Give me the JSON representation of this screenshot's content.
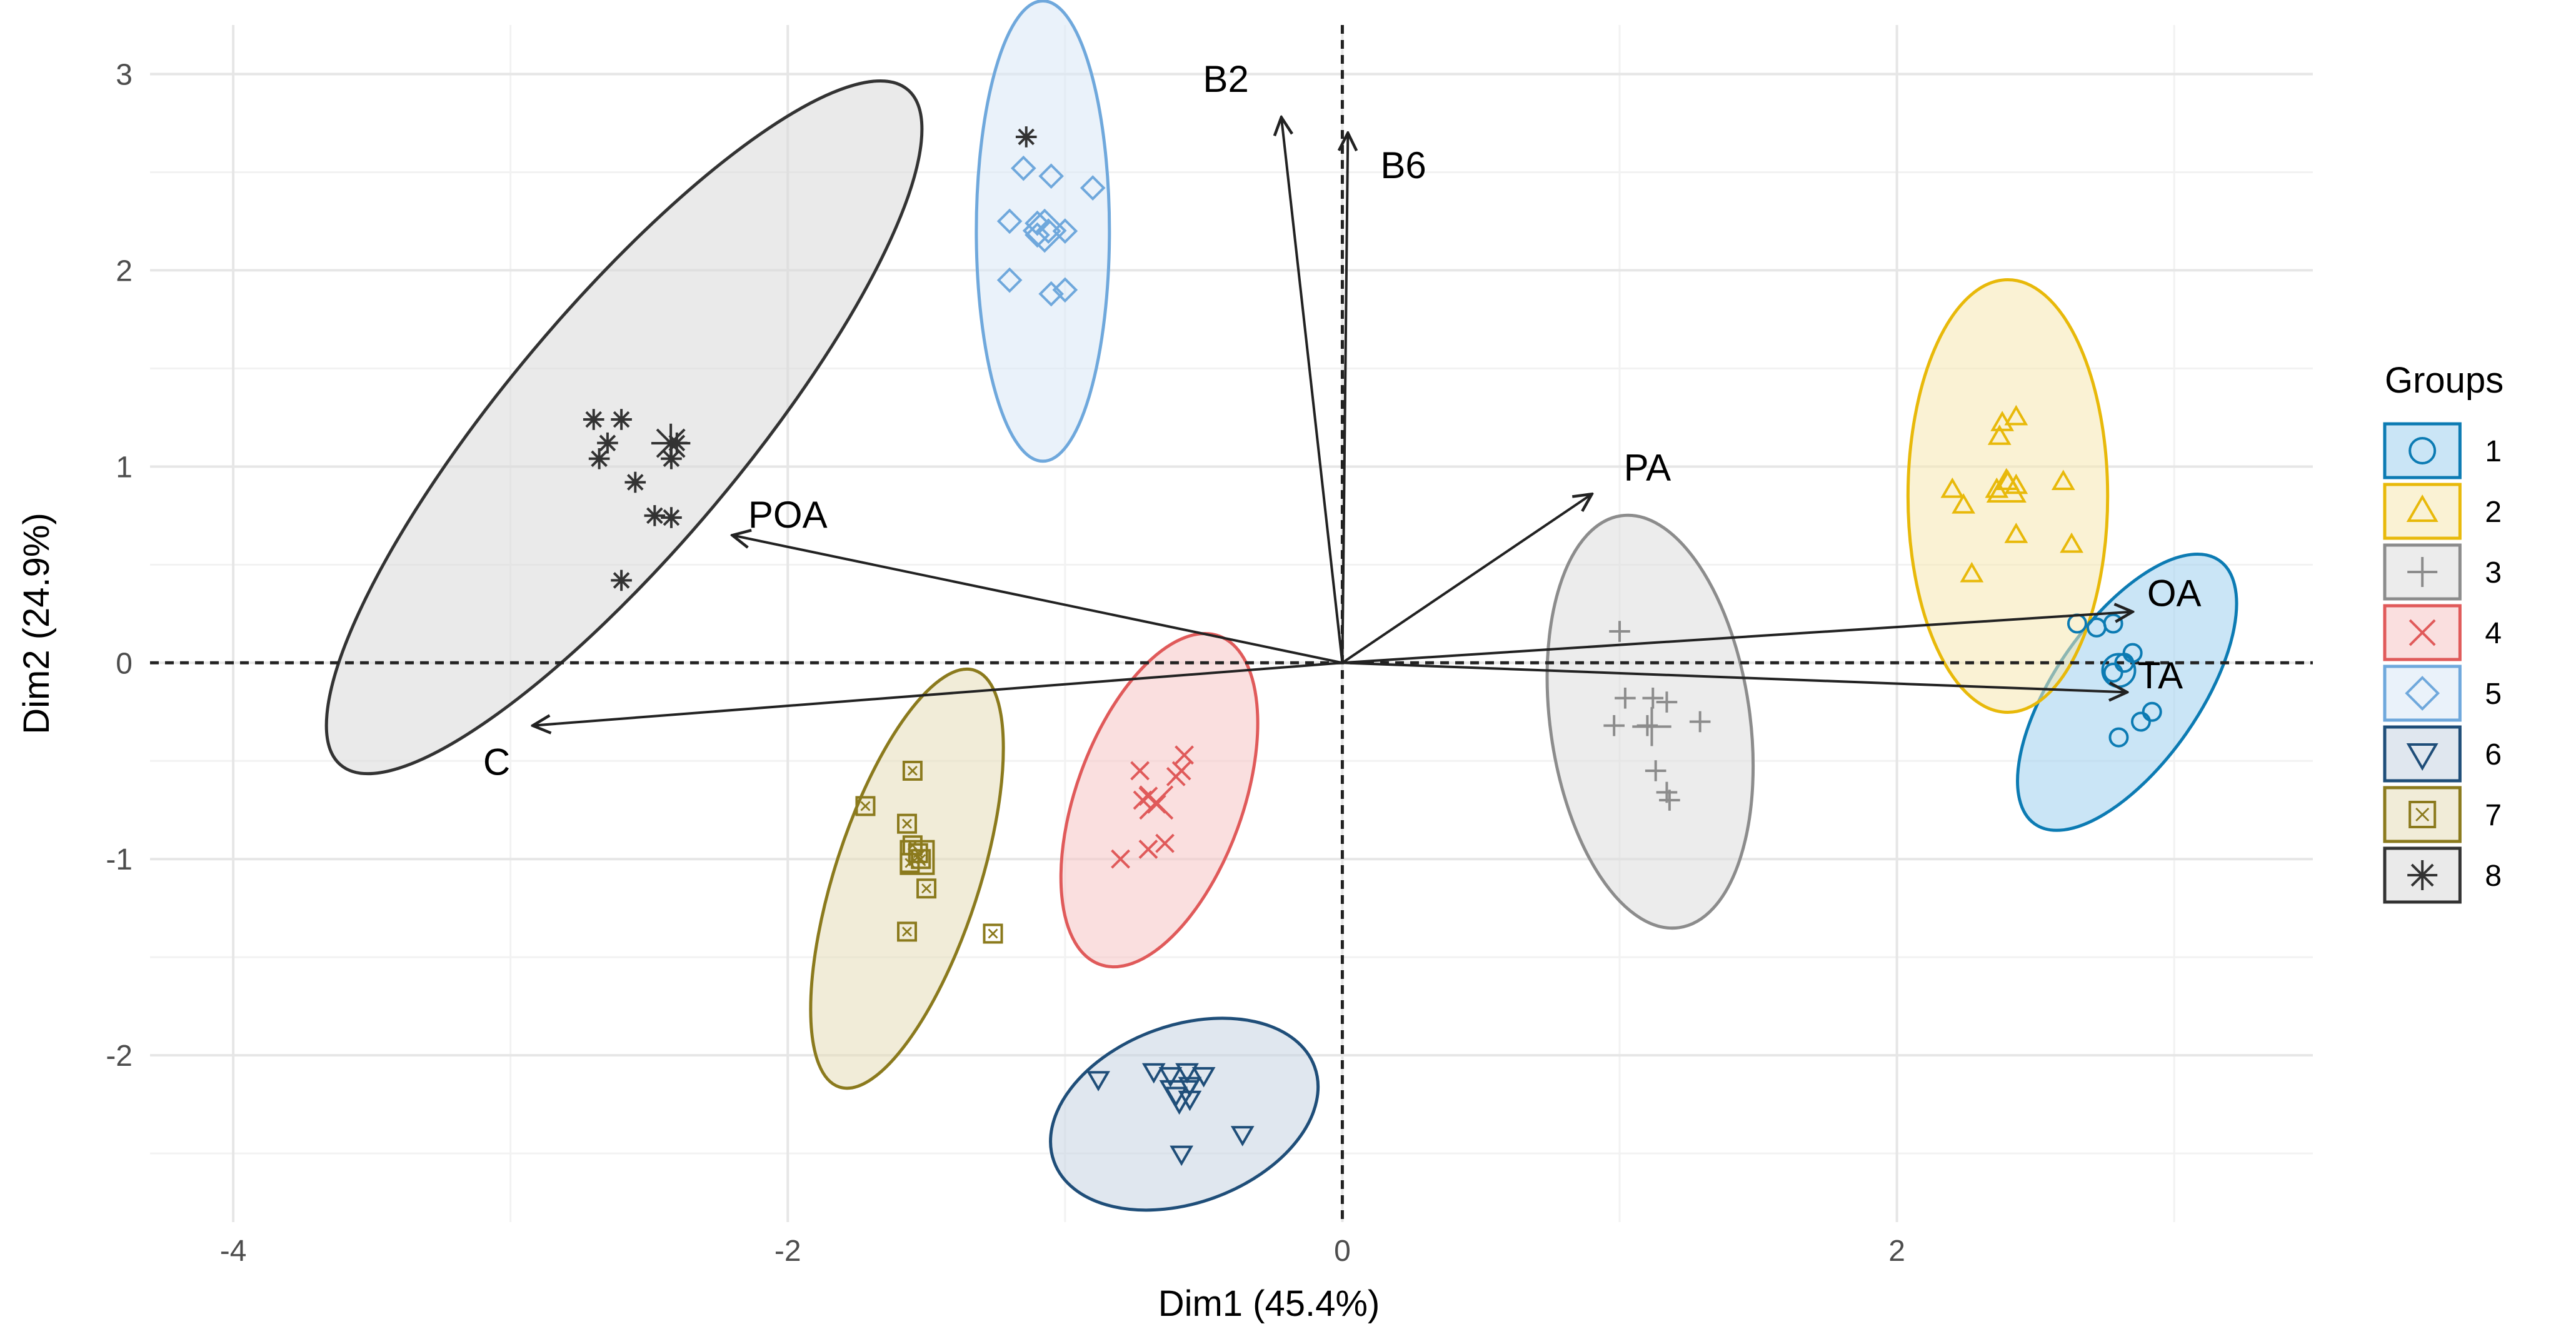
{
  "chart_data": {
    "type": "scatter",
    "subtype": "pca-biplot",
    "xlabel": "Dim1 (45.4%)",
    "ylabel": "Dim2 (24.9%)",
    "xlim": [
      -4.3,
      3.5
    ],
    "ylim": [
      -2.85,
      3.25
    ],
    "x_ticks": [
      -4,
      -2,
      0,
      2
    ],
    "y_ticks": [
      -2,
      -1,
      0,
      1,
      2,
      3
    ],
    "x_tick_labels": [
      "-4",
      "-2",
      "0",
      "2"
    ],
    "y_tick_labels": [
      "-2",
      "-1",
      "0",
      "1",
      "2",
      "3"
    ],
    "grid": true,
    "reference_lines": {
      "x0": "dashed",
      "y0": "dashed"
    },
    "legend": {
      "title": "Groups",
      "position": "right"
    },
    "variables": [
      {
        "name": "B2",
        "x": -0.22,
        "y": 2.78
      },
      {
        "name": "B6",
        "x": 0.02,
        "y": 2.7
      },
      {
        "name": "PA",
        "x": 0.9,
        "y": 0.86
      },
      {
        "name": "POA",
        "x": -2.2,
        "y": 0.65
      },
      {
        "name": "C",
        "x": -2.92,
        "y": -0.32
      },
      {
        "name": "OA",
        "x": 2.85,
        "y": 0.26
      },
      {
        "name": "TA",
        "x": 2.83,
        "y": -0.15
      }
    ],
    "variable_label_positions": [
      {
        "name": "B2",
        "x": -0.42,
        "y": 2.96
      },
      {
        "name": "B6",
        "x": 0.22,
        "y": 2.52
      },
      {
        "name": "PA",
        "x": 1.1,
        "y": 0.98
      },
      {
        "name": "POA",
        "x": -2.0,
        "y": 0.74
      },
      {
        "name": "C",
        "x": -3.05,
        "y": -0.52
      },
      {
        "name": "OA",
        "x": 3.0,
        "y": 0.34
      },
      {
        "name": "TA",
        "x": 2.95,
        "y": -0.08
      }
    ],
    "series": [
      {
        "name": "1",
        "color": "#0C7BB3",
        "fill": "#9FD0EE",
        "shape": "circle",
        "ellipse": {
          "cx": 2.83,
          "cy": -0.15,
          "rx": 0.58,
          "ry": 0.26,
          "angle": -55
        },
        "points": [
          [
            2.65,
            0.2
          ],
          [
            2.72,
            0.18
          ],
          [
            2.78,
            0.2
          ],
          [
            2.85,
            0.05
          ],
          [
            2.82,
            0.0
          ],
          [
            2.78,
            -0.05
          ],
          [
            2.88,
            -0.3
          ],
          [
            2.92,
            -0.25
          ],
          [
            2.8,
            -0.38
          ]
        ]
      },
      {
        "name": "2",
        "color": "#E8B90A",
        "fill": "#F5E7B0",
        "shape": "triangle-up",
        "ellipse": {
          "cx": 2.4,
          "cy": 0.85,
          "rx": 0.36,
          "ry": 0.78,
          "angle": 0
        },
        "points": [
          [
            2.43,
            1.25
          ],
          [
            2.38,
            1.22
          ],
          [
            2.37,
            1.15
          ],
          [
            2.4,
            0.92
          ],
          [
            2.43,
            0.9
          ],
          [
            2.36,
            0.88
          ],
          [
            2.6,
            0.92
          ],
          [
            2.2,
            0.88
          ],
          [
            2.24,
            0.8
          ],
          [
            2.43,
            0.65
          ],
          [
            2.63,
            0.6
          ],
          [
            2.27,
            0.45
          ]
        ]
      },
      {
        "name": "3",
        "color": "#8C8C8C",
        "fill": "#DDDDDD",
        "shape": "plus",
        "ellipse": {
          "cx": 1.11,
          "cy": -0.3,
          "rx": 0.36,
          "ry": 0.75,
          "angle": -8
        },
        "points": [
          [
            1.0,
            0.16
          ],
          [
            1.02,
            -0.18
          ],
          [
            1.12,
            -0.18
          ],
          [
            1.17,
            -0.2
          ],
          [
            0.98,
            -0.32
          ],
          [
            1.1,
            -0.32
          ],
          [
            1.29,
            -0.3
          ],
          [
            1.13,
            -0.55
          ],
          [
            1.17,
            -0.66
          ],
          [
            1.18,
            -0.7
          ]
        ]
      },
      {
        "name": "4",
        "color": "#E05A5A",
        "fill": "#F5C5C5",
        "shape": "x",
        "ellipse": {
          "cx": -0.66,
          "cy": -0.7,
          "rx": 0.3,
          "ry": 0.63,
          "angle": 20
        },
        "points": [
          [
            -0.57,
            -0.47
          ],
          [
            -0.58,
            -0.55
          ],
          [
            -0.6,
            -0.58
          ],
          [
            -0.73,
            -0.55
          ],
          [
            -0.7,
            -0.68
          ],
          [
            -0.72,
            -0.7
          ],
          [
            -0.67,
            -0.72
          ],
          [
            -0.64,
            -0.92
          ],
          [
            -0.7,
            -0.95
          ],
          [
            -0.8,
            -1.0
          ]
        ]
      },
      {
        "name": "5",
        "color": "#6FA8DC",
        "fill": "#D8E8F6",
        "shape": "diamond",
        "ellipse": {
          "cx": -1.08,
          "cy": 2.2,
          "rx": 0.24,
          "ry": 0.83,
          "angle": 0
        },
        "points": [
          [
            -1.15,
            2.52
          ],
          [
            -1.05,
            2.48
          ],
          [
            -0.9,
            2.42
          ],
          [
            -1.2,
            2.25
          ],
          [
            -1.1,
            2.24
          ],
          [
            -1.06,
            2.2
          ],
          [
            -1.0,
            2.2
          ],
          [
            -1.1,
            2.18
          ],
          [
            -1.2,
            1.95
          ],
          [
            -1.05,
            1.88
          ],
          [
            -1.0,
            1.9
          ]
        ]
      },
      {
        "name": "6",
        "color": "#1F4E79",
        "fill": "#C6D3E1",
        "shape": "triangle-down",
        "ellipse": {
          "cx": -0.57,
          "cy": -2.3,
          "rx": 0.32,
          "ry": 0.5,
          "angle": 70
        },
        "points": [
          [
            -0.88,
            -2.12
          ],
          [
            -0.68,
            -2.08
          ],
          [
            -0.62,
            -2.1
          ],
          [
            -0.56,
            -2.08
          ],
          [
            -0.5,
            -2.1
          ],
          [
            -0.55,
            -2.15
          ],
          [
            -0.6,
            -2.2
          ],
          [
            -0.55,
            -2.22
          ],
          [
            -0.36,
            -2.4
          ],
          [
            -0.58,
            -2.5
          ]
        ]
      },
      {
        "name": "7",
        "color": "#8B7A1D",
        "fill": "#E5DDB8",
        "shape": "square-x",
        "ellipse": {
          "cx": -1.57,
          "cy": -1.1,
          "rx": 0.26,
          "ry": 0.79,
          "angle": 18
        },
        "points": [
          [
            -1.55,
            -0.55
          ],
          [
            -1.72,
            -0.73
          ],
          [
            -1.57,
            -0.82
          ],
          [
            -1.55,
            -0.93
          ],
          [
            -1.53,
            -0.97
          ],
          [
            -1.52,
            -1.0
          ],
          [
            -1.56,
            -1.02
          ],
          [
            -1.5,
            -1.15
          ],
          [
            -1.57,
            -1.37
          ],
          [
            -1.26,
            -1.38
          ]
        ]
      },
      {
        "name": "8",
        "color": "#333333",
        "fill": "#D9D9D9",
        "shape": "asterisk",
        "ellipse": {
          "cx": -2.59,
          "cy": 1.2,
          "rx": 1.59,
          "ry": 0.43,
          "angle": -50
        },
        "points": [
          [
            -1.14,
            2.68
          ],
          [
            -2.7,
            1.24
          ],
          [
            -2.6,
            1.24
          ],
          [
            -2.65,
            1.12
          ],
          [
            -2.4,
            1.12
          ],
          [
            -2.68,
            1.04
          ],
          [
            -2.42,
            1.04
          ],
          [
            -2.55,
            0.92
          ],
          [
            -2.48,
            0.75
          ],
          [
            -2.42,
            0.74
          ],
          [
            -2.6,
            0.42
          ]
        ]
      }
    ]
  }
}
